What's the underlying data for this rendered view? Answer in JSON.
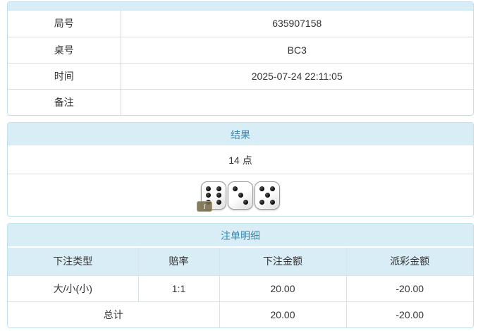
{
  "colors": {
    "accent_text": "#3a87ad",
    "header_bg": "#d9edf7",
    "panel_border": "#c2dfec",
    "negative_red": "#ee1111"
  },
  "info_table": {
    "rows": [
      {
        "label": "局号",
        "value": "635907158"
      },
      {
        "label": "桌号",
        "value": "BC3"
      },
      {
        "label": "时间",
        "value": "2025-07-24 22:11:05"
      },
      {
        "label": "备注",
        "value": ""
      }
    ]
  },
  "result": {
    "title": "结果",
    "points": "14 点",
    "dice": [
      6,
      3,
      5
    ],
    "info_badge": "i"
  },
  "bets": {
    "title": "注单明细",
    "columns": [
      "下注类型",
      "赔率",
      "下注金额",
      "派彩金额"
    ],
    "rows": [
      {
        "bet_type": "大/小(小)",
        "odds": "1:1",
        "bet_amount": "20.00",
        "payout": "-20.00"
      }
    ],
    "total": {
      "label": "总计",
      "bet_amount": "20.00",
      "payout": "-20.00"
    }
  }
}
